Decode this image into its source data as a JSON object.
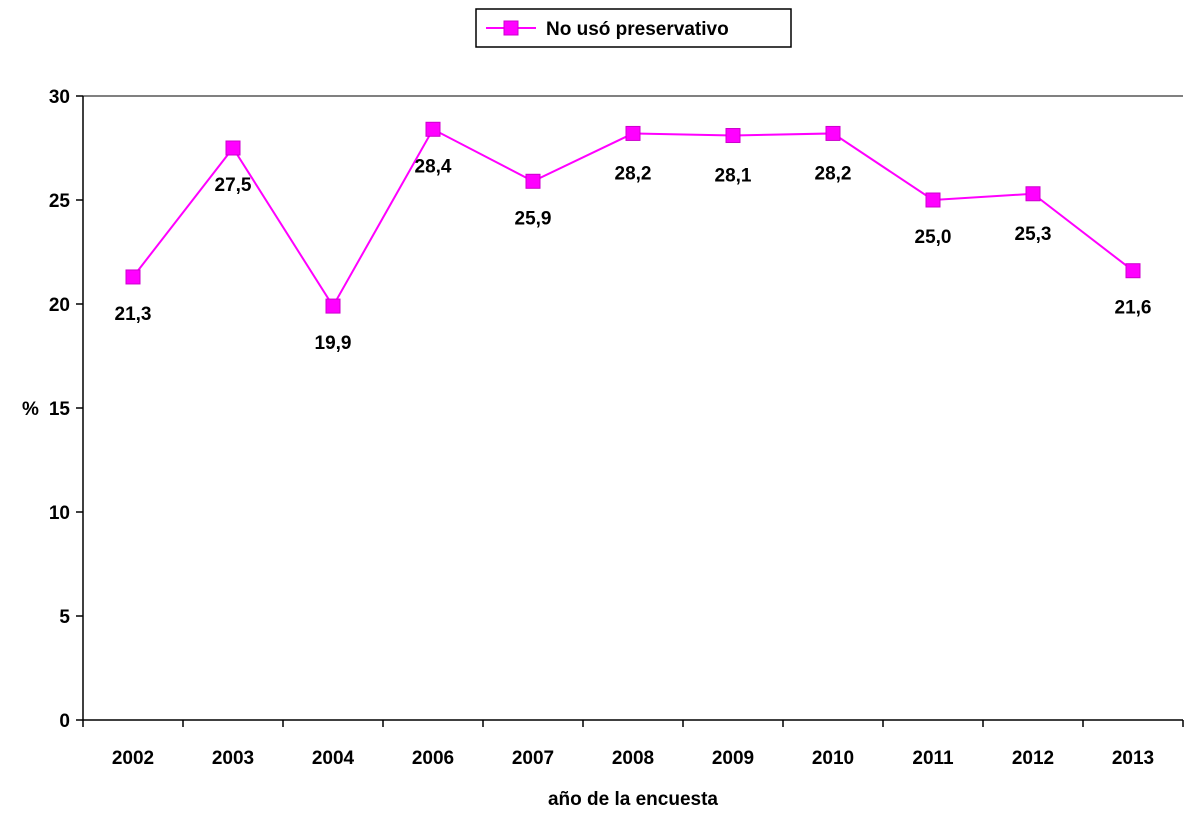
{
  "chart_data": {
    "type": "line",
    "categories": [
      "2002",
      "2003",
      "2004",
      "2006",
      "2007",
      "2008",
      "2009",
      "2010",
      "2011",
      "2012",
      "2013"
    ],
    "series": [
      {
        "name": "No usó preservativo",
        "values": [
          21.3,
          27.5,
          19.9,
          28.4,
          25.9,
          28.2,
          28.1,
          28.2,
          25.0,
          25.3,
          21.6
        ],
        "data_labels": [
          "21,3",
          "27,5",
          "19,9",
          "28,4",
          "25,9",
          "28,2",
          "28,1",
          "28,2",
          "25,0",
          "25,3",
          "21,6"
        ],
        "color": "#FF00FF",
        "marker": "square"
      }
    ],
    "ylabel": "%",
    "xlabel": "año de la encuesta",
    "ylim": [
      0,
      30
    ],
    "yticks": [
      0,
      5,
      10,
      15,
      20,
      25,
      30
    ],
    "grid": false,
    "legend_position": "top-center"
  }
}
